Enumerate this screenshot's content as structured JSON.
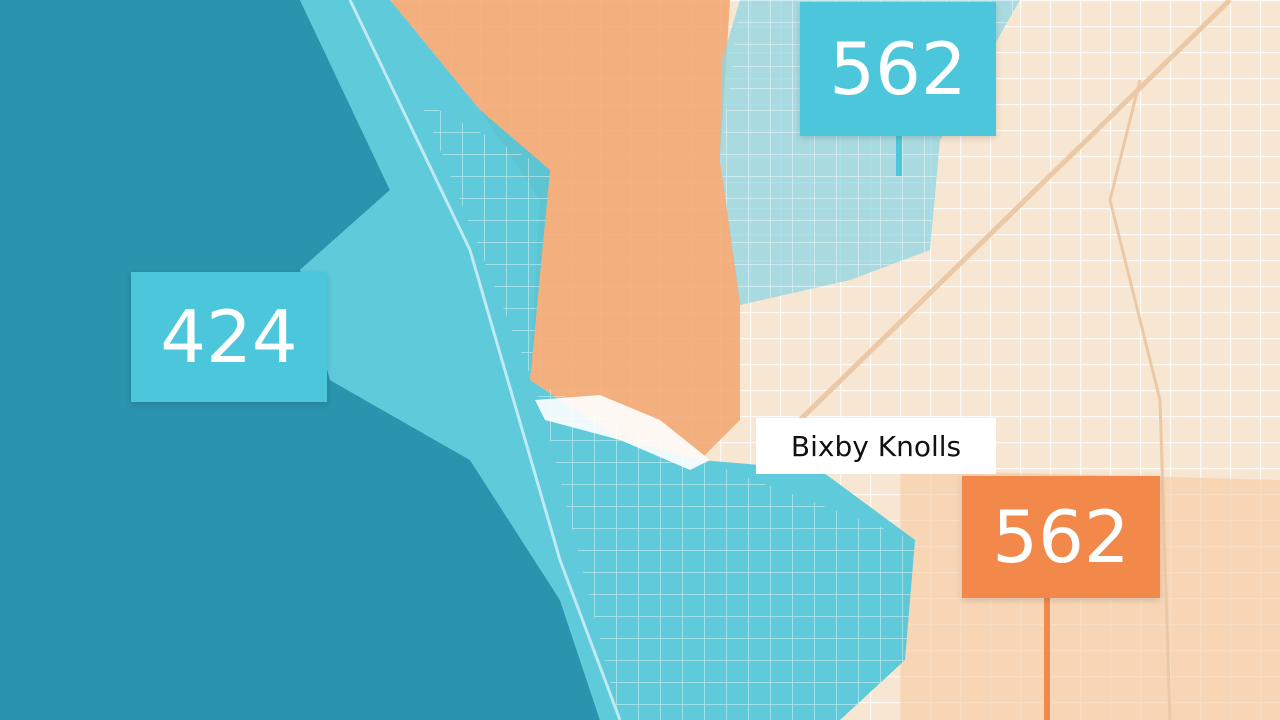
{
  "map": {
    "colors": {
      "ocean": "#2a93ad",
      "coast": "#4cc6da",
      "land": "#f7e6d2",
      "orange_zone": "#f2a56e",
      "cyan_zone": "#8fd6e4",
      "area_code_cyan": "#4cc6da",
      "area_code_orange": "#f2894a"
    },
    "labels": {
      "area_code_top": "562",
      "area_code_left": "424",
      "neighborhood": "Bixby Knolls",
      "area_code_bottom": "562"
    }
  }
}
